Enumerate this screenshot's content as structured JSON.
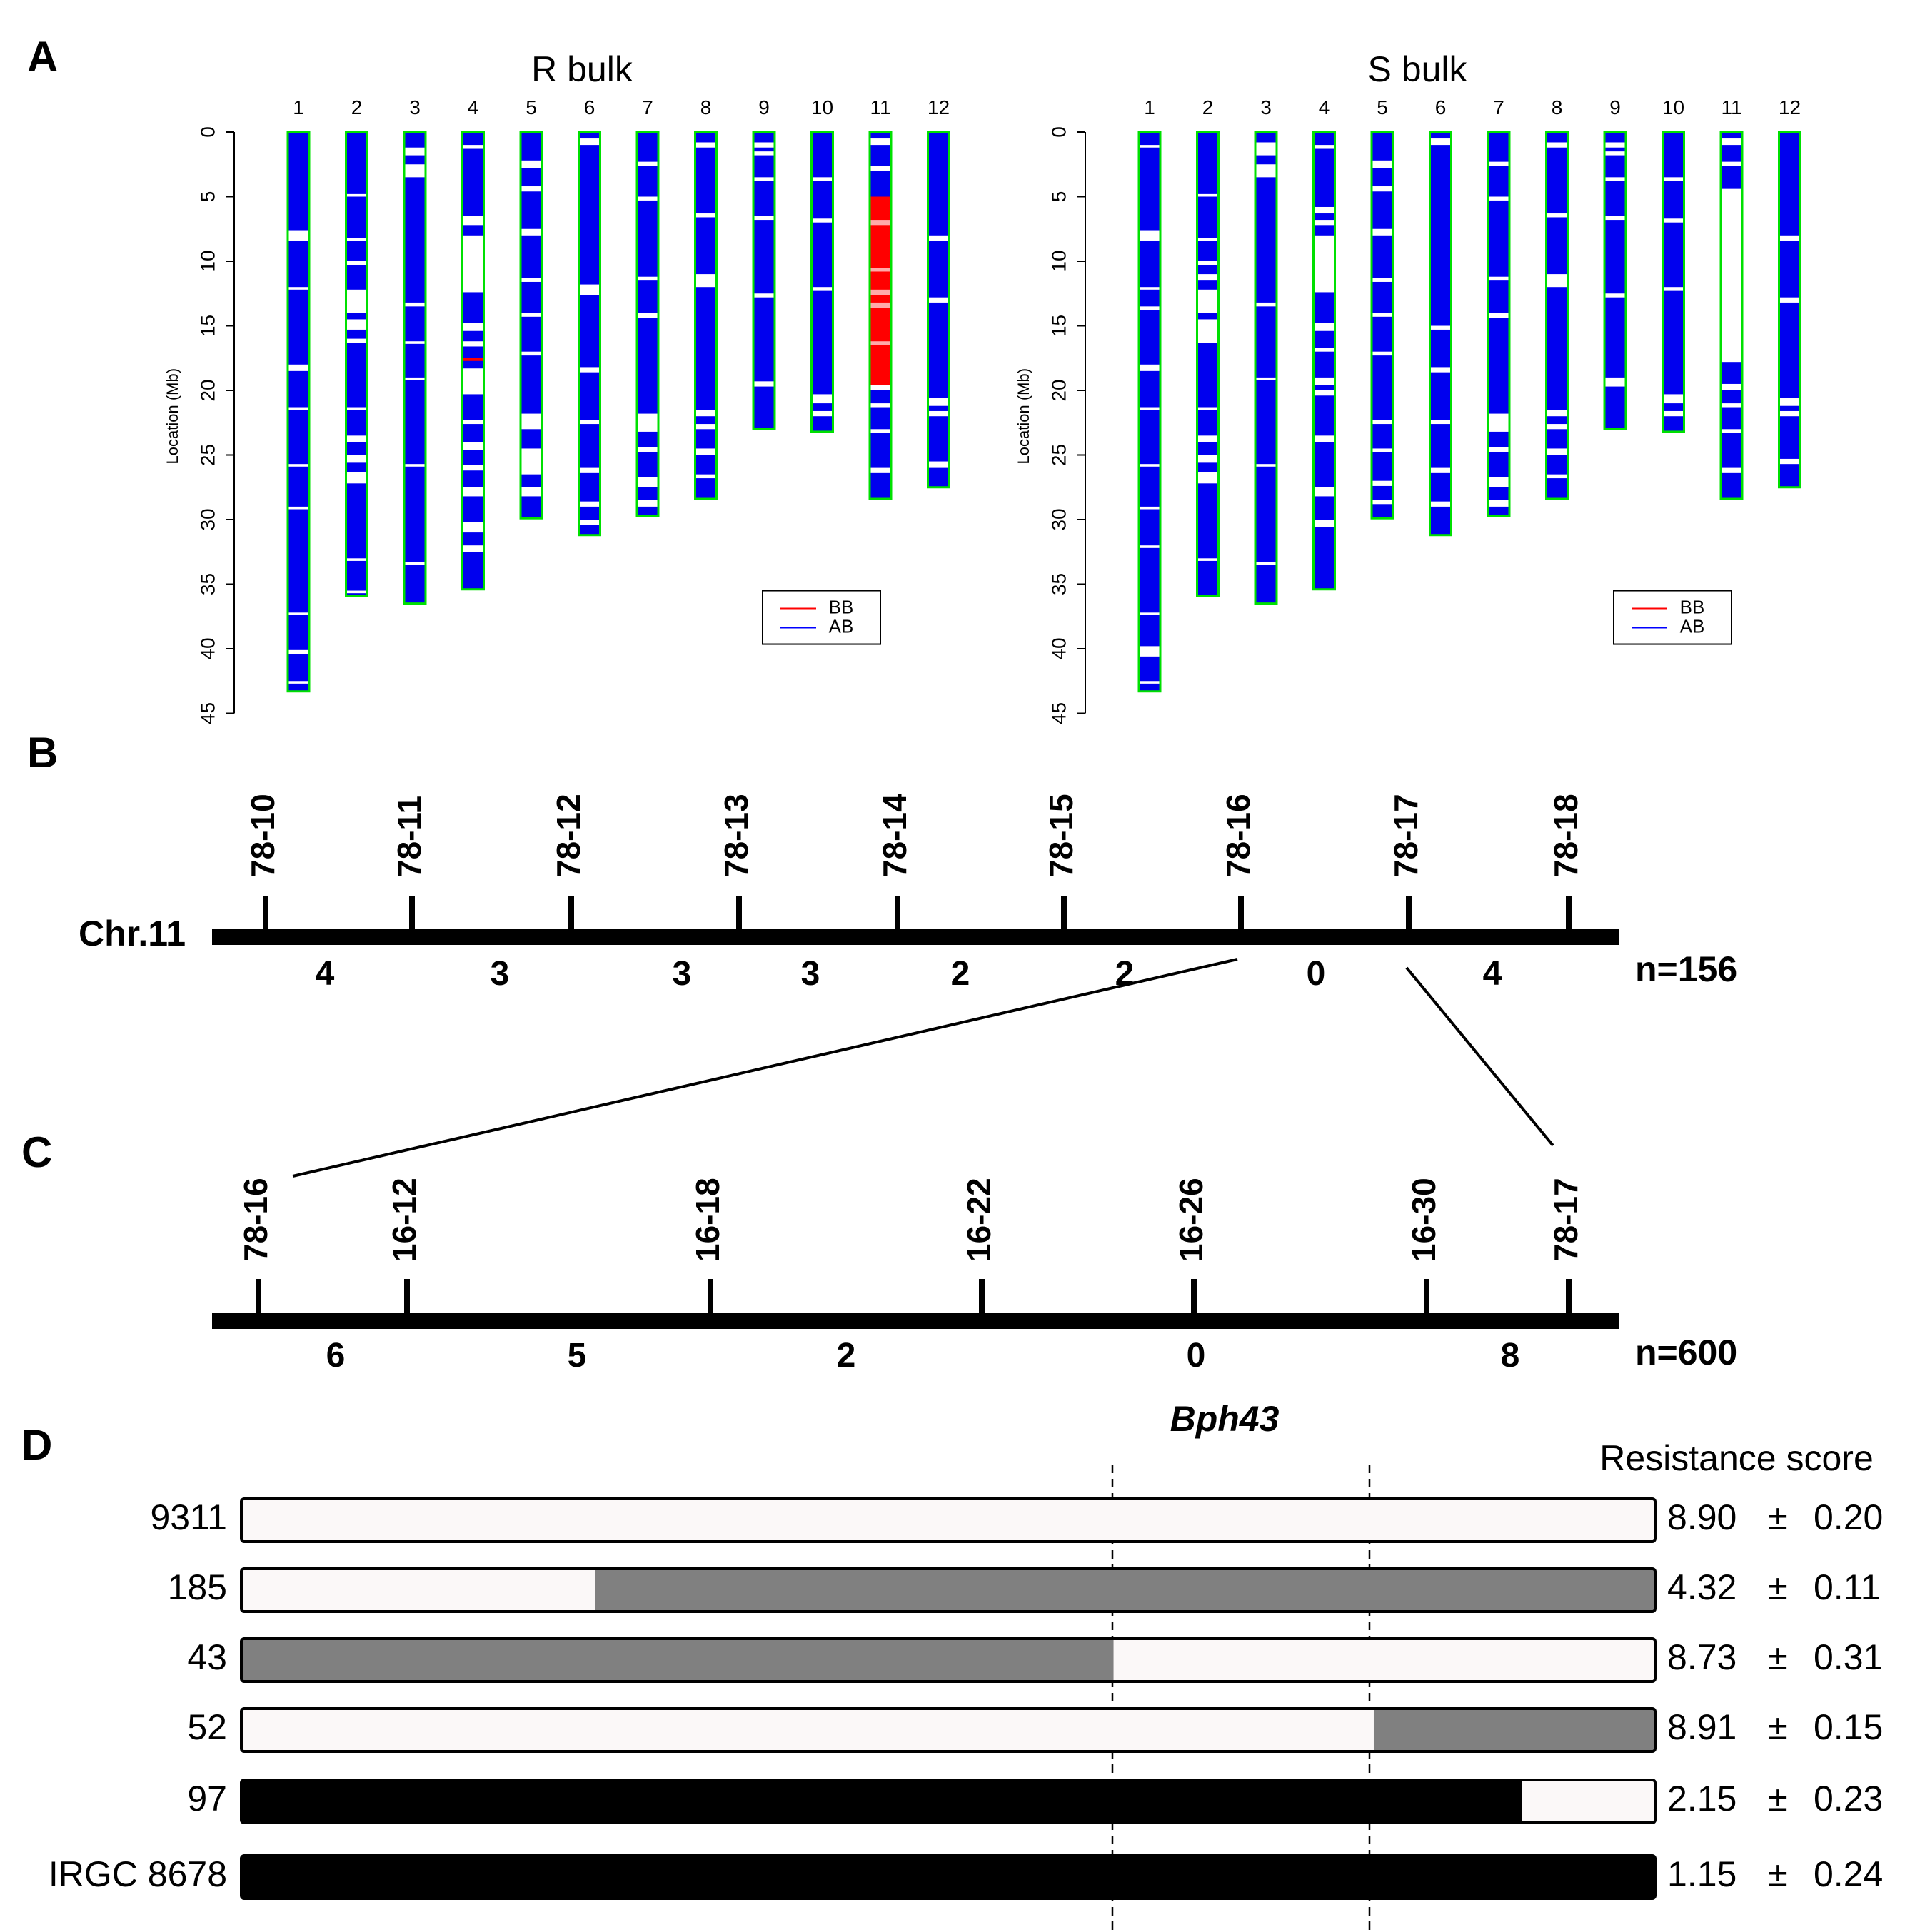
{
  "colors": {
    "chrom_fill": "#0000ee",
    "chrom_outline": "#00e000",
    "bb": "#ff0000",
    "ab": "#0000ff",
    "gap": "#ffffff",
    "hap_white": "#fbf8f8",
    "hap_gray": "#808080",
    "hap_black": "#000000"
  },
  "panel_a": {
    "label": "A",
    "ylabel": "Location (Mb)",
    "yticks": [
      "0",
      "5",
      "10",
      "15",
      "20",
      "25",
      "30",
      "35",
      "40",
      "45"
    ],
    "chrom_labels": [
      "1",
      "2",
      "3",
      "4",
      "5",
      "6",
      "7",
      "8",
      "9",
      "10",
      "11",
      "12"
    ],
    "chrom_lengths_mb": [
      43.3,
      35.9,
      36.5,
      35.4,
      29.9,
      31.2,
      29.7,
      28.4,
      23.0,
      23.2,
      28.4,
      27.5
    ],
    "legend": {
      "bb": "BB",
      "ab": "AB"
    },
    "bulks": [
      {
        "title": "R bulk",
        "name": "r-bulk"
      },
      {
        "title": "S bulk",
        "name": "s-bulk"
      }
    ]
  },
  "panel_b": {
    "label": "B",
    "chrom": "Chr.11",
    "markers": [
      "78-10",
      "78-11",
      "78-12",
      "78-13",
      "78-14",
      "78-15",
      "78-16",
      "78-17",
      "78-18"
    ],
    "recombinants": [
      "4",
      "3",
      "3",
      "3",
      "2",
      "2",
      "0",
      "4"
    ],
    "n": "n=156"
  },
  "panel_c": {
    "label": "C",
    "markers": [
      "78-16",
      "16-12",
      "16-18",
      "16-22",
      "16-26",
      "16-30",
      "78-17"
    ],
    "recombinants": [
      "6",
      "5",
      "2",
      "0",
      "8"
    ],
    "n": "n=600"
  },
  "panel_d": {
    "label": "D",
    "gene": "Bph43",
    "score_header": "Resistance score",
    "lines": [
      {
        "name": "9311",
        "segments": [
          {
            "from": 0,
            "to": 1,
            "color": "white"
          }
        ],
        "mean": "8.90",
        "pm": "±",
        "se": "0.20"
      },
      {
        "name": "185",
        "segments": [
          {
            "from": 0,
            "to": 0.25,
            "color": "white"
          },
          {
            "from": 0.25,
            "to": 1,
            "color": "gray"
          }
        ],
        "mean": "4.32",
        "pm": "±",
        "se": "0.11"
      },
      {
        "name": "43",
        "segments": [
          {
            "from": 0,
            "to": 0.617,
            "color": "gray"
          },
          {
            "from": 0.617,
            "to": 1,
            "color": "white"
          }
        ],
        "mean": "8.73",
        "pm": "±",
        "se": "0.31"
      },
      {
        "name": "52",
        "segments": [
          {
            "from": 0,
            "to": 0.801,
            "color": "white"
          },
          {
            "from": 0.801,
            "to": 1,
            "color": "gray"
          }
        ],
        "mean": "8.91",
        "pm": "±",
        "se": "0.15"
      },
      {
        "name": "97",
        "segments": [
          {
            "from": 0,
            "to": 0.906,
            "color": "black"
          },
          {
            "from": 0.906,
            "to": 1,
            "color": "white"
          }
        ],
        "mean": "2.15",
        "pm": "±",
        "se": "0.23"
      },
      {
        "name": "IRGC 8678",
        "segments": [
          {
            "from": 0,
            "to": 1,
            "color": "black"
          }
        ],
        "mean": "1.15",
        "pm": "±",
        "se": "0.24"
      }
    ]
  }
}
